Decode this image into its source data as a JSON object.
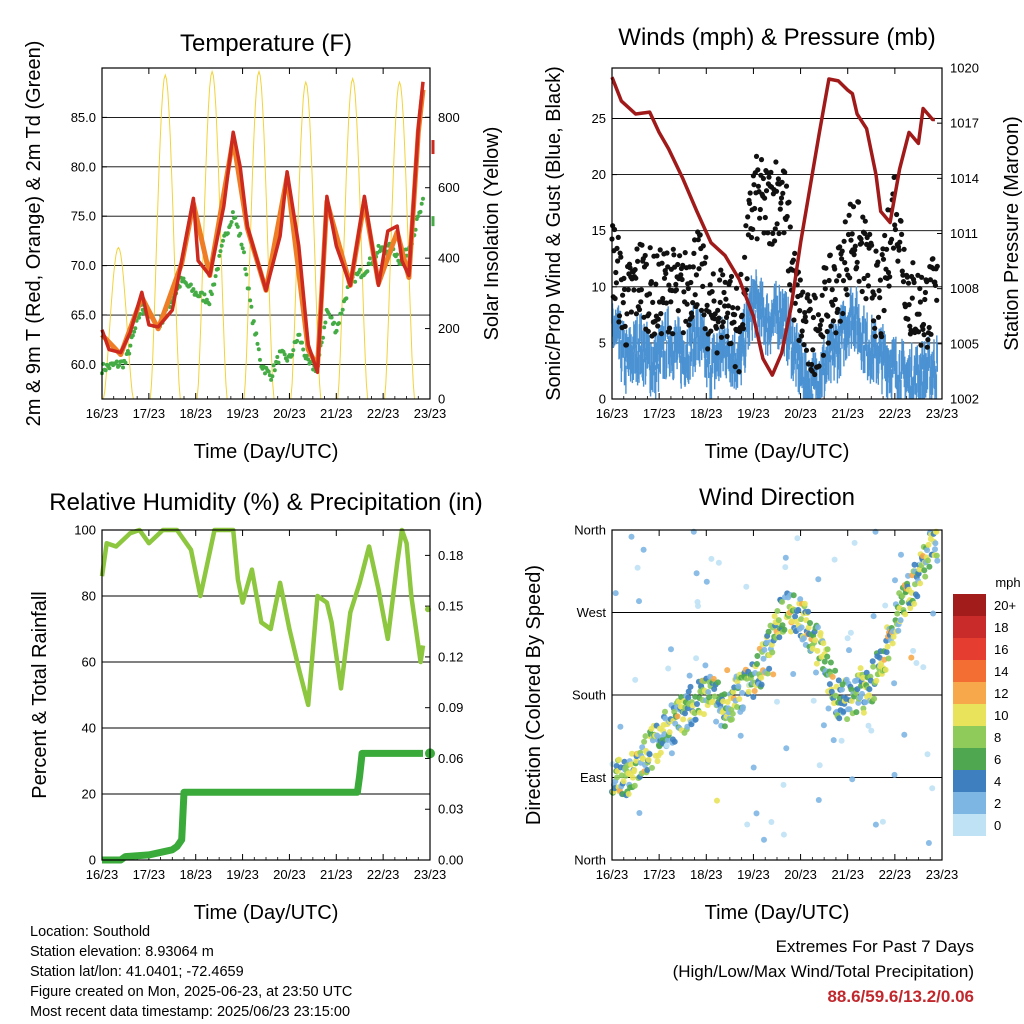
{
  "chart_data": [
    {
      "type": "line",
      "title": "Temperature (F)",
      "xlabel": "Time (Day/UTC)",
      "ylabel": "2m & 9m T (Red, Orange) & 2m Td (Green)",
      "ylabel_right": "Solar Insolation (Yellow)",
      "categories": [
        "16/23",
        "17/23",
        "18/23",
        "19/23",
        "20/23",
        "21/23",
        "22/23",
        "23/23"
      ],
      "ylim": [
        56.5,
        90
      ],
      "y_ticks": [
        "60.0",
        "65.0",
        "70.0",
        "75.0",
        "80.0",
        "85.0"
      ],
      "y2lim": [
        0,
        940
      ],
      "y2_ticks": [
        "0",
        "200",
        "400",
        "600",
        "800"
      ],
      "series": [
        {
          "name": "2m T",
          "color": "#cc2a1e",
          "x": [
            0,
            0.15,
            0.4,
            0.6,
            0.85,
            1.0,
            1.2,
            1.5,
            1.7,
            1.95,
            2.05,
            2.3,
            2.6,
            2.8,
            2.95,
            3.1,
            3.5,
            3.8,
            3.95,
            4.2,
            4.4,
            4.6,
            4.8,
            5.0,
            5.3,
            5.6,
            5.9,
            6.1,
            6.3,
            6.4,
            6.55,
            6.75,
            6.85
          ],
          "values": [
            63.5,
            61.5,
            61.2,
            63.2,
            67.3,
            64,
            63.8,
            65.5,
            70.5,
            76.8,
            70.5,
            69,
            76,
            83.5,
            80,
            74,
            67.5,
            73,
            79.5,
            72,
            62,
            59.2,
            77,
            72,
            68,
            77,
            68,
            73.5,
            74,
            70.5,
            69,
            84,
            88.6
          ]
        },
        {
          "name": "9m T",
          "color": "#ef7d26",
          "x": [
            0,
            0.4,
            0.85,
            1.2,
            1.7,
            1.95,
            2.3,
            2.8,
            3.1,
            3.5,
            3.95,
            4.4,
            4.6,
            4.8,
            5.3,
            5.6,
            5.9,
            6.3,
            6.55,
            6.75,
            6.85
          ],
          "values": [
            63,
            61,
            66.8,
            63.6,
            70.2,
            76.3,
            69,
            82.8,
            73.8,
            67.5,
            79,
            61.5,
            59.8,
            76.5,
            68,
            76.5,
            68.2,
            73.4,
            68.8,
            83.5,
            87.8
          ]
        },
        {
          "name": "2m Td",
          "color": "#45ac45",
          "x": [
            0,
            0.5,
            0.85,
            1.2,
            1.7,
            2.0,
            2.3,
            2.6,
            2.8,
            3.0,
            3.2,
            3.4,
            3.6,
            3.8,
            4.0,
            4.2,
            4.4,
            4.6,
            4.8,
            5.0,
            5.3,
            5.6,
            5.9,
            6.2,
            6.4,
            6.6,
            6.85
          ],
          "values": [
            59.6,
            60.2,
            65.8,
            63.8,
            68.5,
            67.2,
            66.5,
            72.5,
            75.4,
            72,
            65,
            60,
            58.8,
            61,
            60.5,
            63,
            60,
            59.6,
            65.5,
            63.5,
            68.5,
            69.5,
            71.5,
            71.8,
            70.2,
            72.5,
            76.3
          ]
        },
        {
          "name": "Solar Insolation",
          "axis": "right",
          "color": "#f2d33b",
          "peaks_x": [
            0.35,
            1.35,
            2.35,
            3.35,
            4.35,
            5.35,
            6.35
          ],
          "peaks": [
            430,
            920,
            930,
            930,
            900,
            910,
            900
          ]
        }
      ],
      "extra_right_value": {
        "label": "82",
        "x": 7.0,
        "y": 82
      }
    },
    {
      "type": "line",
      "title": "Winds (mph) & Pressure (mb)",
      "xlabel": "Time (Day/UTC)",
      "ylabel": "Sonic/Prop Wind & Gust (Blue, Black)",
      "ylabel_right": "Station Pressure (Maroon)",
      "categories": [
        "16/23",
        "17/23",
        "18/23",
        "19/23",
        "20/23",
        "21/23",
        "22/23",
        "23/23"
      ],
      "ylim": [
        0,
        29.5
      ],
      "y_ticks": [
        "0",
        "5",
        "10",
        "15",
        "20",
        "25"
      ],
      "y2lim": [
        1002,
        1020
      ],
      "y2_ticks": [
        "1002",
        "1005",
        "1008",
        "1011",
        "1014",
        "1017",
        "1020"
      ],
      "series": [
        {
          "name": "Wind",
          "color": "#4b92d3",
          "x": [
            0,
            0.3,
            0.6,
            0.9,
            1.2,
            1.5,
            1.8,
            2.1,
            2.4,
            2.7,
            3.0,
            3.3,
            3.6,
            3.9,
            4.2,
            4.5,
            4.8,
            5.1,
            5.4,
            5.7,
            6.0,
            6.3,
            6.6,
            6.85
          ],
          "values": [
            8,
            4.5,
            6,
            4,
            6.5,
            5,
            7,
            4,
            6,
            4.5,
            10,
            8,
            9,
            5,
            2,
            4,
            6,
            9,
            6,
            5,
            4,
            3,
            3.5,
            4
          ]
        },
        {
          "name": "Gust",
          "color": "#111111",
          "x": [
            0,
            0.3,
            0.6,
            0.9,
            1.2,
            1.5,
            1.8,
            2.1,
            2.4,
            2.7,
            3.0,
            3.3,
            3.6,
            3.9,
            4.2,
            4.5,
            4.8,
            5.1,
            5.4,
            5.7,
            6.0,
            6.3,
            6.6,
            6.85
          ],
          "values": [
            13,
            8,
            11,
            9,
            10,
            9,
            12,
            7,
            9,
            6,
            18,
            17,
            19,
            9,
            5,
            8,
            10,
            15,
            12,
            8,
            18,
            9,
            8,
            9
          ]
        },
        {
          "name": "Station Pressure",
          "axis": "right",
          "color": "#a01a1a",
          "x": [
            0,
            0.2,
            0.5,
            0.8,
            1.0,
            1.2,
            1.5,
            1.8,
            2.1,
            2.4,
            2.7,
            3.0,
            3.2,
            3.4,
            3.6,
            3.8,
            4.0,
            4.2,
            4.4,
            4.6,
            4.8,
            5.0,
            5.1,
            5.2,
            5.4,
            5.6,
            5.7,
            5.9,
            6.1,
            6.3,
            6.5,
            6.6,
            6.8,
            6.85
          ],
          "values": [
            1019.5,
            1018.2,
            1017.5,
            1017.6,
            1016.5,
            1015.6,
            1014,
            1012.2,
            1010.5,
            1009.8,
            1008.5,
            1006.5,
            1004.2,
            1003.3,
            1004.5,
            1007,
            1010.5,
            1013.5,
            1016.5,
            1019.4,
            1019.3,
            1018.8,
            1018.6,
            1017.5,
            1016.7,
            1014.2,
            1012.2,
            1011.6,
            1014.5,
            1016.5,
            1015.9,
            1017.8,
            1017.2,
            1017.2
          ]
        }
      ]
    },
    {
      "type": "line",
      "title": "Relative Humidity (%) & Precipitation (in)",
      "xlabel": "Time (Day/UTC)",
      "ylabel": "Percent & Total Rainfall",
      "categories": [
        "16/23",
        "17/23",
        "18/23",
        "19/23",
        "20/23",
        "21/23",
        "22/23",
        "23/23"
      ],
      "ylim": [
        0,
        100
      ],
      "y_ticks": [
        "0",
        "20",
        "40",
        "60",
        "80",
        "100"
      ],
      "y2lim": [
        0,
        0.195
      ],
      "y2_ticks": [
        "0.00",
        "0.03",
        "0.06",
        "0.09",
        "0.12",
        "0.15",
        "0.18"
      ],
      "series": [
        {
          "name": "Relative Humidity",
          "color": "#8dc63f",
          "x": [
            0,
            0.1,
            0.3,
            0.6,
            0.8,
            1.0,
            1.3,
            1.6,
            1.9,
            2.1,
            2.4,
            2.6,
            2.8,
            2.9,
            3.0,
            3.2,
            3.4,
            3.6,
            3.8,
            4.0,
            4.2,
            4.4,
            4.6,
            4.8,
            4.9,
            5.1,
            5.3,
            5.5,
            5.7,
            5.9,
            6.1,
            6.3,
            6.4,
            6.5,
            6.6,
            6.8,
            6.85
          ],
          "values": [
            86,
            96,
            95,
            99,
            100,
            96,
            100,
            100,
            94,
            80,
            100,
            100,
            100,
            85,
            78,
            88,
            72,
            70,
            84,
            70,
            58,
            47,
            80,
            78,
            72,
            52,
            75,
            84,
            95,
            82,
            67,
            90,
            100,
            96,
            80,
            60,
            65
          ]
        },
        {
          "name": "Total Rainfall",
          "axis": "right",
          "color": "#3aaa3a",
          "x": [
            0,
            0.4,
            0.5,
            1.0,
            1.5,
            1.6,
            1.7,
            1.75,
            4.5,
            5.45,
            5.5,
            5.55,
            6.85
          ],
          "values": [
            0,
            0,
            0.002,
            0.003,
            0.006,
            0.008,
            0.012,
            0.04,
            0.04,
            0.04,
            0.05,
            0.063,
            0.063
          ]
        }
      ]
    },
    {
      "type": "scatter",
      "title": "Wind Direction",
      "xlabel": "Time (Day/UTC)",
      "ylabel": "Direction (Colored By Speed)",
      "categories": [
        "16/23",
        "17/23",
        "18/23",
        "19/23",
        "20/23",
        "21/23",
        "22/23",
        "23/23"
      ],
      "y_ticks": [
        "North",
        "East",
        "South",
        "West",
        "North"
      ],
      "y_tick_values": [
        0,
        90,
        180,
        270,
        360
      ],
      "ylim": [
        0,
        360
      ],
      "colorbar_title": "mph",
      "colorbar_labels": [
        "20+",
        "18",
        "16",
        "14",
        "12",
        "10",
        "8",
        "6",
        "4",
        "2",
        "0"
      ],
      "colorbar_colors": [
        "#a31c1c",
        "#c92a2a",
        "#e53e31",
        "#f26e32",
        "#f7a84a",
        "#e8e35a",
        "#8fcb5b",
        "#4fa84f",
        "#3d7fbf",
        "#7eb6e3",
        "#bfe2f5"
      ],
      "trend_x": [
        0,
        0.3,
        0.6,
        0.9,
        1.2,
        1.5,
        1.8,
        2.1,
        2.4,
        2.7,
        3.0,
        3.3,
        3.6,
        3.9,
        4.2,
        4.5,
        4.8,
        5.1,
        5.4,
        5.7,
        6.0,
        6.3,
        6.6,
        6.85
      ],
      "trend_y": [
        90,
        85,
        110,
        125,
        145,
        158,
        175,
        178,
        165,
        182,
        195,
        225,
        270,
        272,
        250,
        218,
        175,
        175,
        185,
        210,
        265,
        290,
        320,
        345
      ]
    }
  ],
  "info": {
    "location": "Location: Southold",
    "elevation": "Station elevation: 8.93064 m",
    "latlon": "Station lat/lon: 41.0401; -72.4659",
    "created": "Figure created on Mon, 2025-06-23, at 23:50 UTC",
    "timestamp": "Most recent data timestamp: 2025/06/23 23:15:00"
  },
  "extremes": {
    "line1": "Extremes For Past 7 Days",
    "line2": "(High/Low/Max Wind/Total Precipitation)",
    "values": "88.6/59.6/13.2/0.06",
    "color": "#c0282d"
  }
}
